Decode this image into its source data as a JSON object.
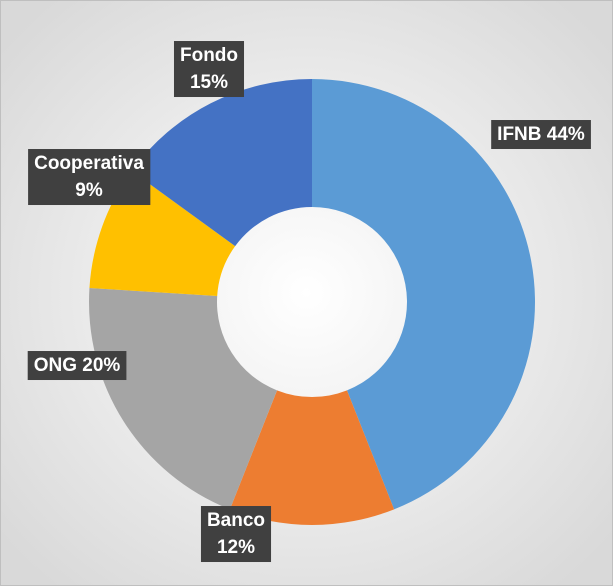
{
  "chart_data": {
    "type": "donut",
    "categories": [
      "IFNB",
      "Banco",
      "ONG",
      "Cooperativa",
      "Fondo"
    ],
    "values": [
      44,
      12,
      20,
      9,
      15
    ],
    "value_labels": [
      "44%",
      "12%",
      "20%",
      "9%",
      "15%"
    ],
    "colors": [
      "#5b9bd5",
      "#ed7d31",
      "#a5a5a5",
      "#ffc000",
      "#4472c4"
    ]
  }
}
